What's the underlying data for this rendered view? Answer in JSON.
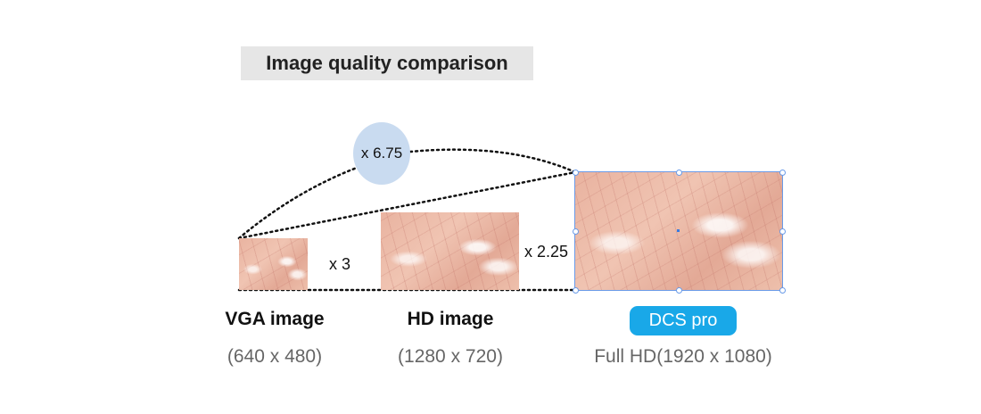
{
  "title": "Image quality comparison",
  "multipliers": {
    "overall": "x 6.75",
    "vga_to_hd": "x 3",
    "hd_to_fullhd": "x 2.25"
  },
  "items": [
    {
      "name": "VGA image",
      "resolution": "(640 x 480)"
    },
    {
      "name": "HD image",
      "resolution": "(1280 x 720)"
    },
    {
      "name": "DCS pro",
      "resolution": "Full HD(1920 x 1080)"
    }
  ],
  "colors": {
    "title_bg": "#e6e6e6",
    "circle": "#c9dbf0",
    "badge": "#19a8e8",
    "selection": "#6a9be8"
  }
}
